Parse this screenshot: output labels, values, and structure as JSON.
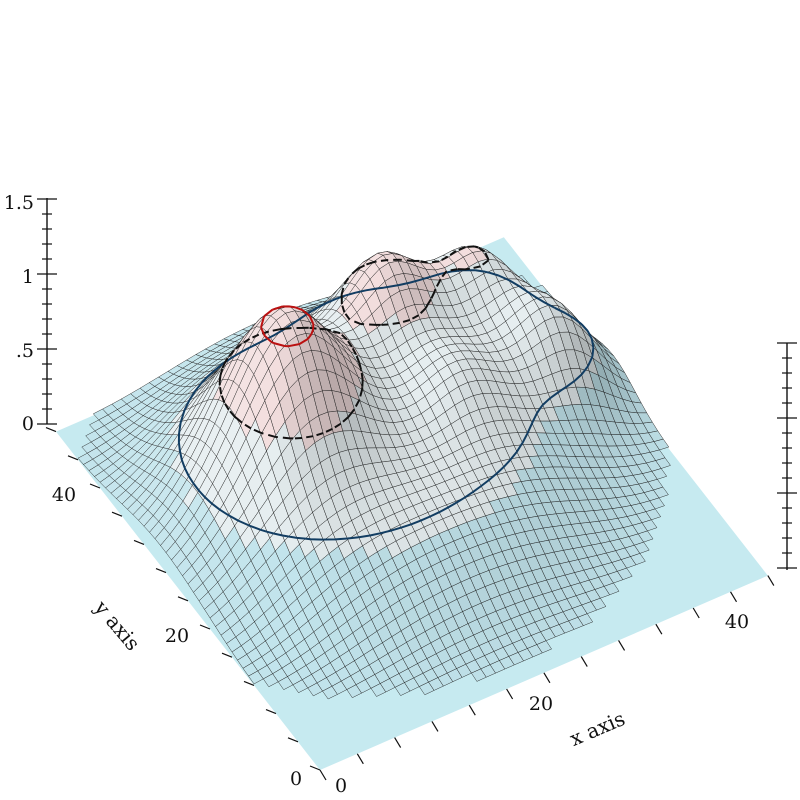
{
  "chart_data": {
    "type": "surface3d",
    "xlabel": "x axis",
    "ylabel": "y axis",
    "x_ticks": [
      "0",
      "20",
      "40"
    ],
    "y_ticks": [
      "0",
      "20",
      "40"
    ],
    "z_ticks": [
      "0",
      ".5",
      "1",
      "1.5"
    ],
    "xlim": [
      0,
      48
    ],
    "ylim": [
      0,
      48
    ],
    "zlim": [
      0,
      1.5
    ],
    "grid_size": 48,
    "contour_levels": [
      0.4,
      0.8,
      1.2
    ],
    "peaks": [
      {
        "x": 14,
        "y": 30,
        "height": 1.3
      },
      {
        "x": 28,
        "y": 36,
        "height": 1.0
      },
      {
        "x": 38,
        "y": 36,
        "height": 0.95
      },
      {
        "x": 42,
        "y": 28,
        "height": 0.9
      },
      {
        "x": 30,
        "y": 26,
        "height": 0.7
      }
    ],
    "colors": {
      "floor": "#c6eaf0",
      "low": "#c2e4ec",
      "mid": "#e6eef0",
      "high": "#f3dede",
      "contour_low": "#123d62",
      "contour_mid": "#111111",
      "contour_high": "#bb1111",
      "grid_line": "#1c1c1c"
    }
  }
}
